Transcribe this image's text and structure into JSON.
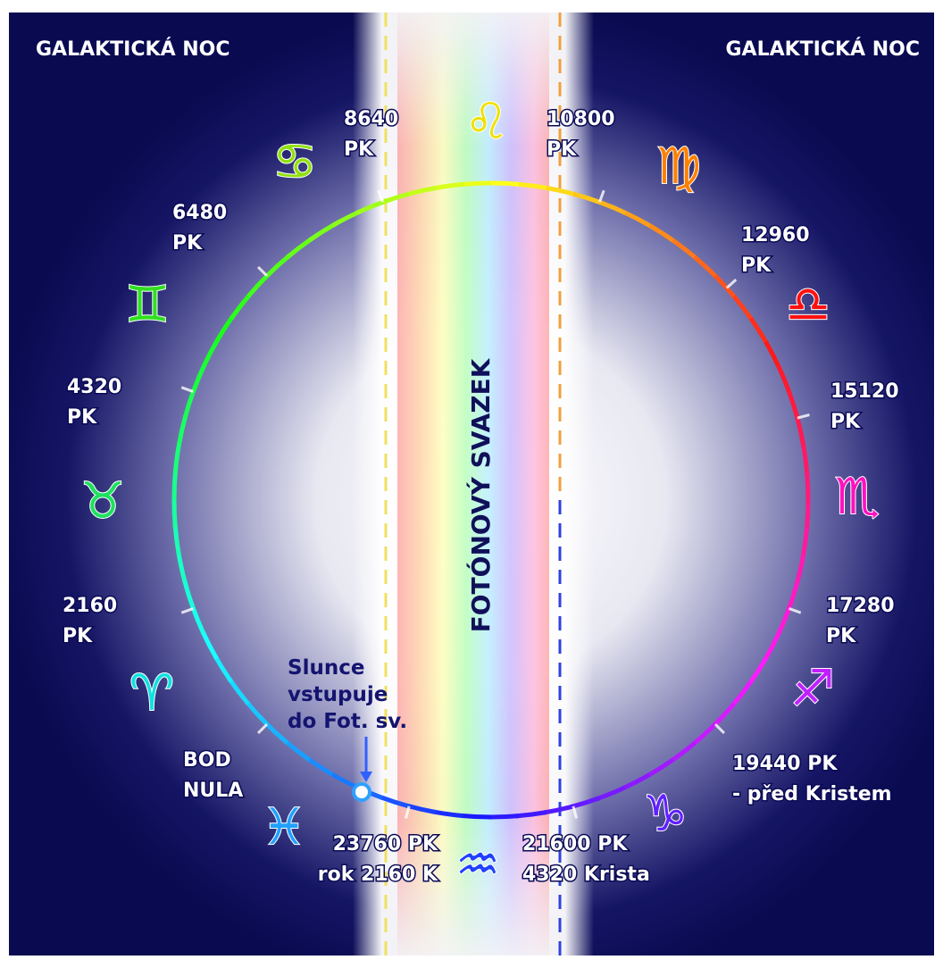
{
  "header": {
    "left": "GALAKTICKÁ NOC",
    "right": "GALAKTICKÁ NOC"
  },
  "beam_label": "FOTÓNOVÝ SVAZEK",
  "markers": [
    {
      "lines": [
        "8640",
        "PK"
      ]
    },
    {
      "lines": [
        "10800",
        "PK"
      ]
    },
    {
      "lines": [
        "6480",
        "PK"
      ]
    },
    {
      "lines": [
        "12960",
        "PK"
      ]
    },
    {
      "lines": [
        "4320",
        "PK"
      ]
    },
    {
      "lines": [
        "15120",
        "PK"
      ]
    },
    {
      "lines": [
        "2160",
        "PK"
      ]
    },
    {
      "lines": [
        "17280",
        "PK"
      ]
    },
    {
      "lines": [
        "19440  PK",
        "- před  Kristem"
      ]
    },
    {
      "lines": [
        "BOD",
        "NULA"
      ]
    },
    {
      "lines": [
        "23760 PK",
        "rok  2160 K"
      ]
    },
    {
      "lines": [
        "21600 PK",
        "4320 Krista"
      ]
    }
  ],
  "sun_note": {
    "lines": [
      "Slunce",
      "vstupuje",
      "do Fot. sv."
    ]
  },
  "zodiac": [
    "♌",
    "♍",
    "♎",
    "♏",
    "♐",
    "♑",
    "♒",
    "♓",
    "♈",
    "♉",
    "♊",
    "♋"
  ]
}
